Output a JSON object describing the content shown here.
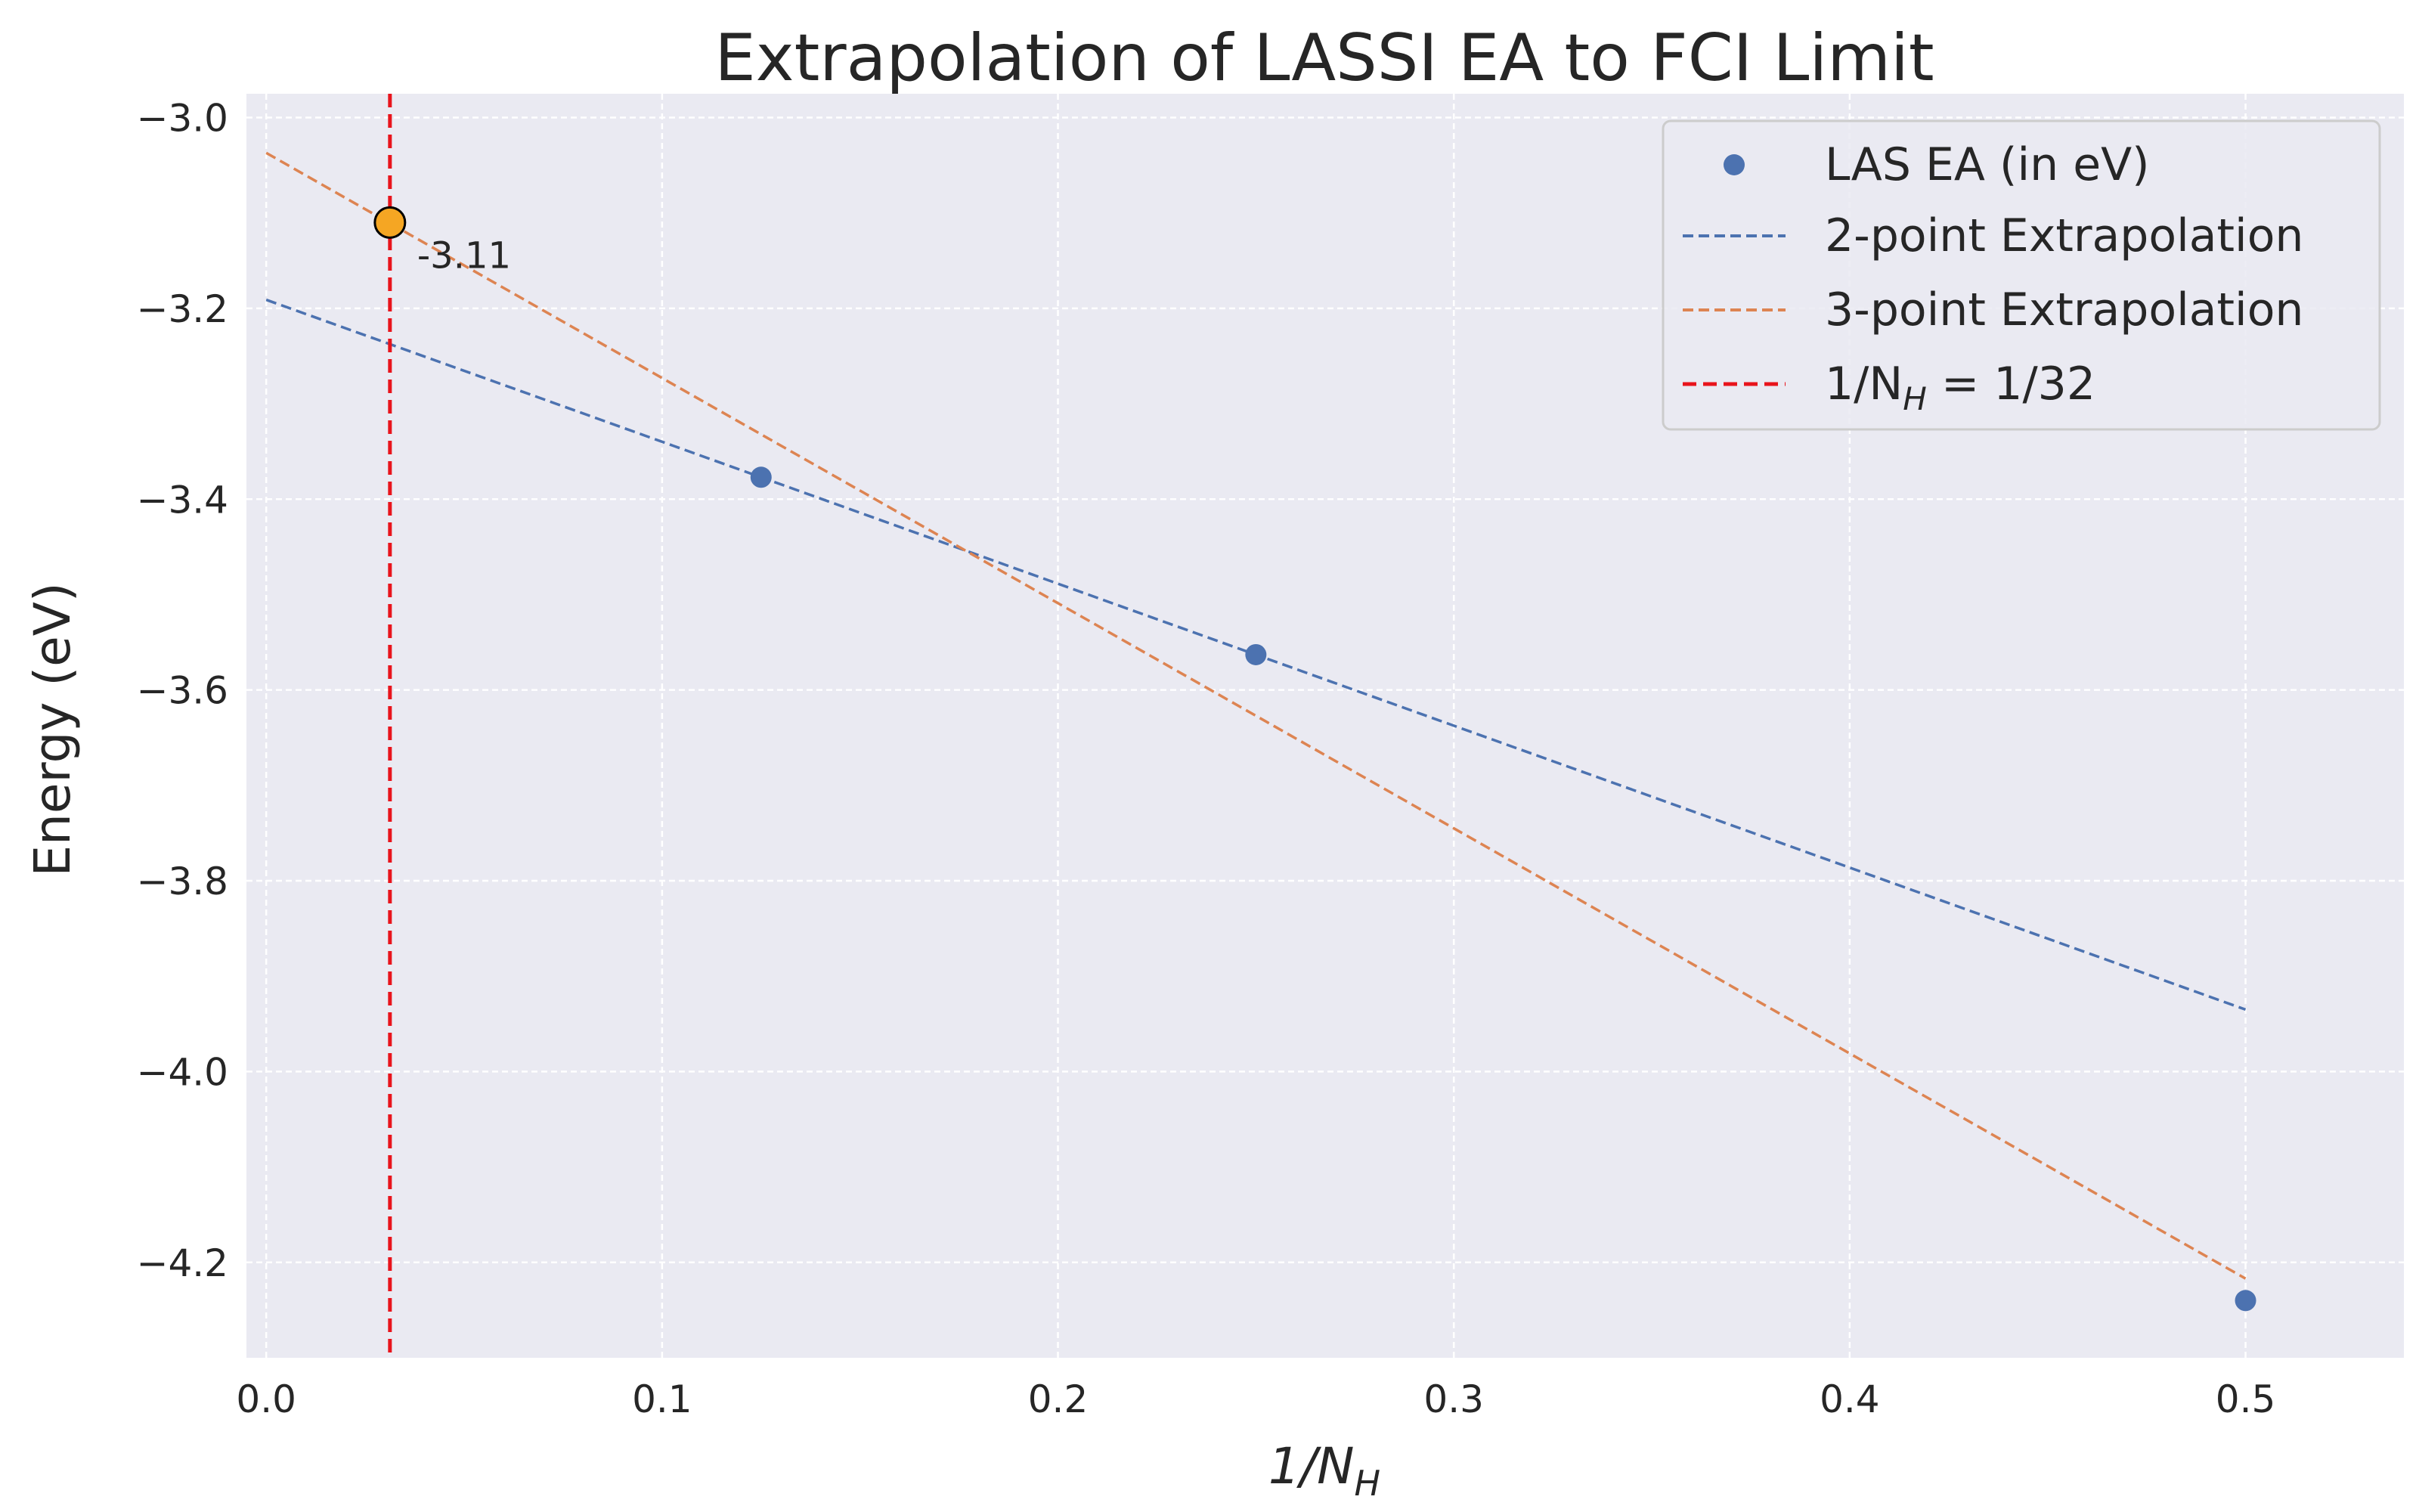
{
  "chart_data": {
    "type": "scatter",
    "title": "Extrapolation of LASSI EA to FCI Limit",
    "xlabel": "1/N",
    "xlabel_sub": "H",
    "ylabel": "Energy (eV)",
    "xlim": [
      -0.005,
      0.54
    ],
    "ylim": [
      -4.3,
      -2.975
    ],
    "xticks": [
      0.0,
      0.1,
      0.2,
      0.3,
      0.4,
      0.5
    ],
    "xtick_labels": [
      "0.0",
      "0.1",
      "0.2",
      "0.3",
      "0.4",
      "0.5"
    ],
    "yticks": [
      -3.0,
      -3.2,
      -3.4,
      -3.6,
      -3.8,
      -4.0,
      -4.2
    ],
    "ytick_labels": [
      "−3.0",
      "−3.2",
      "−3.4",
      "−3.6",
      "−3.8",
      "−4.0",
      "−4.2"
    ],
    "grid": true,
    "legend_position": "top-right",
    "series": [
      {
        "name": "LAS EA (in eV)",
        "kind": "scatter",
        "color": "#4c72b0",
        "x": [
          0.125,
          0.25,
          0.5
        ],
        "y": [
          -3.377,
          -3.563,
          -4.24
        ]
      },
      {
        "name": "2-point Extrapolation",
        "kind": "dashed-line",
        "color": "#4c72b0",
        "x": [
          0.0,
          0.5
        ],
        "y": [
          -3.191,
          -3.935
        ]
      },
      {
        "name": "3-point Extrapolation",
        "kind": "dashed-line",
        "color": "#dd8452",
        "x": [
          0.0,
          0.5
        ],
        "y": [
          -3.037,
          -4.217
        ]
      },
      {
        "name": "1/N",
        "name_sub": "H",
        "name_suffix": " = 1/32",
        "kind": "vline",
        "color": "#e8141c",
        "x": 0.03125
      }
    ],
    "highlight": {
      "x": 0.03125,
      "y": -3.11,
      "label": "-3.11",
      "fill": "#f5a623",
      "edge": "#000000"
    },
    "colors": {
      "plot_background": "#eaeaf2",
      "grid": "#ffffff",
      "text": "#262626"
    }
  }
}
